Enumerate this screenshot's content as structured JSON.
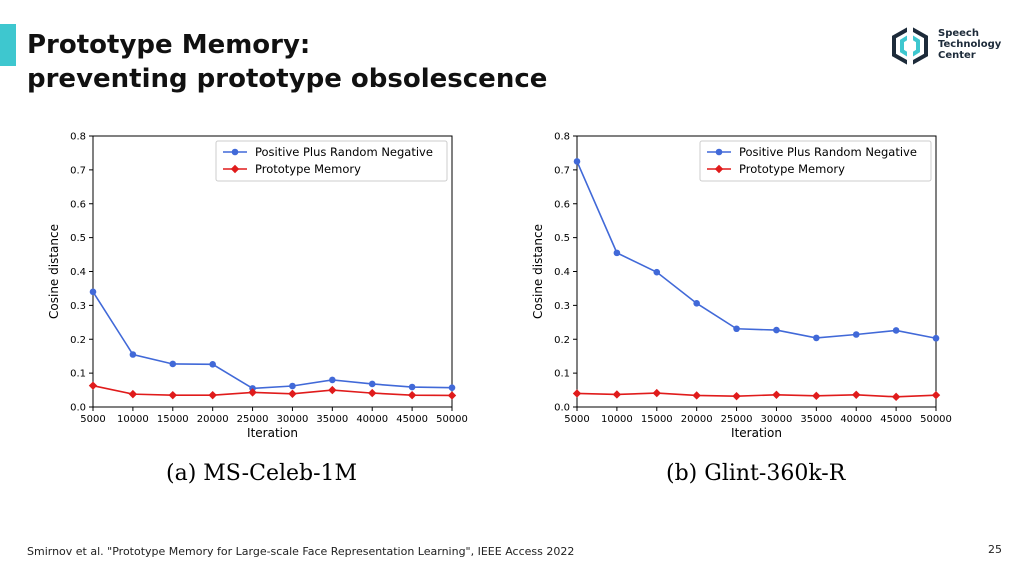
{
  "slide": {
    "title_line1": "Prototype Memory:",
    "title_line2": "preventing prototype obsolescence",
    "logo": {
      "line1": "Speech",
      "line2": "Technology",
      "line3": "Center",
      "icon": "hexagon-logo-icon"
    },
    "footer": "Smirnov et al. \"Prototype Memory for Large-scale Face Representation Learning\", IEEE Access 2022",
    "page_number": "25",
    "accent_color": "#3ec7cf"
  },
  "chart_data": [
    {
      "type": "line",
      "caption": "(a) MS-Celeb-1M",
      "xlabel": "Iteration",
      "ylabel": "Cosine distance",
      "x": [
        5000,
        10000,
        15000,
        20000,
        25000,
        30000,
        35000,
        40000,
        45000,
        50000
      ],
      "xlim": [
        5000,
        50000
      ],
      "ylim": [
        0,
        0.8
      ],
      "yticks": [
        "0.0",
        "0.1",
        "0.2",
        "0.3",
        "0.4",
        "0.5",
        "0.6",
        "0.7",
        "0.8"
      ],
      "legend_position": "top-right",
      "grid": false,
      "series": [
        {
          "name": "Positive Plus Random Negative",
          "color": "#4169d8",
          "marker": "circle",
          "values": [
            0.34,
            0.155,
            0.127,
            0.126,
            0.055,
            0.062,
            0.08,
            0.068,
            0.059,
            0.057
          ]
        },
        {
          "name": "Prototype Memory",
          "color": "#e01b1b",
          "marker": "diamond",
          "values": [
            0.063,
            0.038,
            0.035,
            0.035,
            0.043,
            0.039,
            0.05,
            0.041,
            0.035,
            0.034
          ]
        }
      ]
    },
    {
      "type": "line",
      "caption": "(b) Glint-360k-R",
      "xlabel": "Iteration",
      "ylabel": "Cosine distance",
      "x": [
        5000,
        10000,
        15000,
        20000,
        25000,
        30000,
        35000,
        40000,
        45000,
        50000
      ],
      "xlim": [
        5000,
        50000
      ],
      "ylim": [
        0,
        0.8
      ],
      "yticks": [
        "0.0",
        "0.1",
        "0.2",
        "0.3",
        "0.4",
        "0.5",
        "0.6",
        "0.7",
        "0.8"
      ],
      "legend_position": "top-right",
      "grid": false,
      "series": [
        {
          "name": "Positive Plus Random Negative",
          "color": "#4169d8",
          "marker": "circle",
          "values": [
            0.725,
            0.455,
            0.398,
            0.306,
            0.231,
            0.227,
            0.204,
            0.214,
            0.226,
            0.203
          ]
        },
        {
          "name": "Prototype Memory",
          "color": "#e01b1b",
          "marker": "diamond",
          "values": [
            0.04,
            0.037,
            0.041,
            0.034,
            0.032,
            0.036,
            0.033,
            0.036,
            0.03,
            0.035
          ]
        }
      ]
    }
  ]
}
